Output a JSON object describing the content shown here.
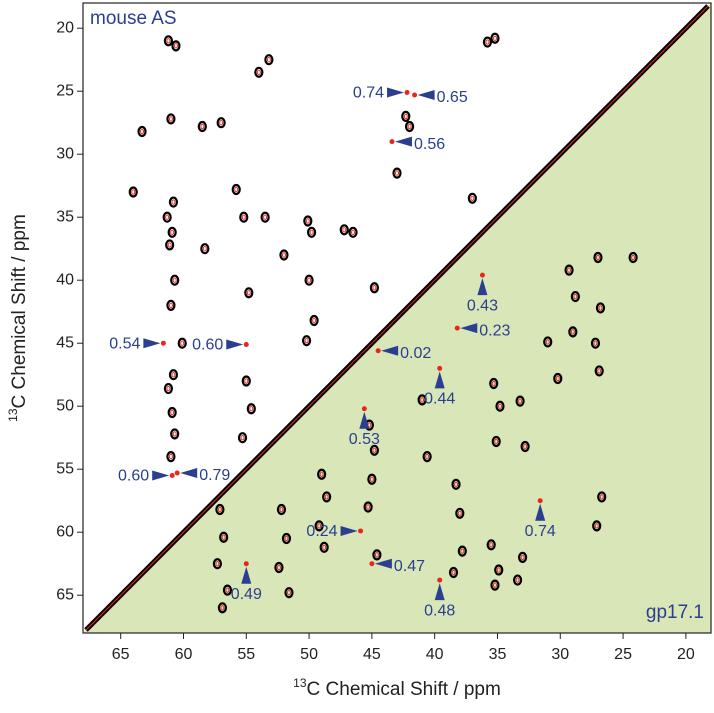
{
  "chart_data": {
    "type": "scatter",
    "corner_labels": [
      "mouse AS",
      "gp17.1"
    ],
    "x_label_isotope": "13",
    "x_label": "C Chemical Shift / ppm",
    "y_label_isotope": "13",
    "y_label": "C Chemical Shift / ppm",
    "xlim": [
      68,
      18
    ],
    "ylim": [
      18,
      68
    ],
    "xticks": [
      65,
      60,
      55,
      50,
      45,
      40,
      35,
      30,
      25,
      20
    ],
    "yticks": [
      20,
      25,
      30,
      35,
      40,
      45,
      50,
      55,
      60,
      65
    ],
    "peak_color": "#000000",
    "peak_edge_color": "#e8271c",
    "annotation_color": "#2a3f8f",
    "region_color": "#d9e6b8",
    "peaks": {
      "x": [
        61.2,
        60.6,
        61.0,
        60.8,
        61.3,
        60.9,
        61.1,
        60.7,
        61.0,
        60.8,
        61.2,
        60.9,
        60.7,
        61.0,
        55.2,
        54.8,
        55.0,
        54.6,
        55.3,
        50.1,
        49.8,
        50.0,
        49.6,
        50.2,
        35.8,
        35.2,
        42.3,
        42.0,
        57.0,
        58.5,
        63.3,
        64.0,
        52.0,
        53.5,
        46.5,
        44.8,
        27.0,
        26.8,
        27.2,
        26.9,
        26.7,
        27.1,
        24.2,
        29.3,
        28.8,
        29.0,
        35.3,
        34.8,
        35.1,
        35.5,
        34.9,
        35.2,
        38.3,
        38.0,
        37.8,
        38.5,
        45.2,
        44.8,
        45.0,
        45.3,
        44.6,
        49.0,
        48.6,
        49.2,
        48.8,
        52.2,
        51.8,
        52.4,
        51.6,
        57.1,
        56.8,
        57.3,
        56.5,
        56.9,
        33.2,
        32.8,
        33.0,
        33.4,
        41.0,
        40.6,
        30.2,
        31.0,
        54.0,
        53.2,
        43.0,
        47.2,
        37.0,
        55.8,
        60.1,
        58.3
      ],
      "y": [
        21.0,
        21.4,
        27.2,
        33.8,
        35.0,
        36.2,
        37.2,
        40.0,
        42.0,
        47.5,
        48.6,
        50.5,
        52.2,
        54.0,
        35.0,
        41.0,
        48.0,
        50.2,
        52.5,
        35.3,
        36.2,
        40.0,
        43.2,
        44.8,
        21.1,
        20.8,
        27.0,
        27.8,
        27.5,
        27.8,
        28.2,
        33.0,
        38.0,
        35.0,
        36.2,
        40.6,
        38.2,
        42.2,
        45.0,
        47.2,
        57.2,
        59.5,
        38.2,
        39.2,
        41.3,
        44.1,
        48.2,
        50.0,
        52.8,
        61.0,
        63.0,
        64.2,
        56.2,
        58.5,
        61.5,
        63.2,
        51.5,
        53.5,
        55.8,
        58.0,
        61.8,
        55.4,
        57.2,
        59.5,
        61.2,
        58.2,
        60.5,
        62.8,
        64.8,
        58.2,
        60.4,
        62.5,
        64.6,
        66.0,
        49.6,
        53.2,
        62.0,
        63.8,
        49.5,
        54.0,
        47.8,
        44.9,
        23.5,
        22.5,
        31.5,
        36.0,
        33.5,
        32.8,
        45.0,
        37.5
      ]
    },
    "annotations": [
      {
        "text": "0.74",
        "x": 42.2,
        "y": 25.1,
        "direction": "left"
      },
      {
        "text": "0.65",
        "x": 41.6,
        "y": 25.3,
        "direction": "right"
      },
      {
        "text": "0.56",
        "x": 43.4,
        "y": 29.0,
        "direction": "right"
      },
      {
        "text": "0.54",
        "x": 61.6,
        "y": 45.0,
        "direction": "left"
      },
      {
        "text": "0.60",
        "x": 55.0,
        "y": 45.1,
        "direction": "left"
      },
      {
        "text": "0.60",
        "x": 60.9,
        "y": 55.5,
        "direction": "left"
      },
      {
        "text": "0.79",
        "x": 60.5,
        "y": 55.3,
        "direction": "right"
      },
      {
        "text": "0.43",
        "x": 36.2,
        "y": 39.6,
        "direction": "below"
      },
      {
        "text": "0.23",
        "x": 38.2,
        "y": 43.8,
        "direction": "right"
      },
      {
        "text": "0.02",
        "x": 44.5,
        "y": 45.6,
        "direction": "right"
      },
      {
        "text": "0.44",
        "x": 39.6,
        "y": 47.0,
        "direction": "below"
      },
      {
        "text": "0.53",
        "x": 45.6,
        "y": 50.2,
        "direction": "below"
      },
      {
        "text": "0.24",
        "x": 45.9,
        "y": 59.9,
        "direction": "left"
      },
      {
        "text": "0.74",
        "x": 31.6,
        "y": 57.5,
        "direction": "below"
      },
      {
        "text": "0.47",
        "x": 45.0,
        "y": 62.5,
        "direction": "right"
      },
      {
        "text": "0.49",
        "x": 55.0,
        "y": 62.5,
        "direction": "below"
      },
      {
        "text": "0.48",
        "x": 39.6,
        "y": 63.8,
        "direction": "below"
      }
    ]
  }
}
